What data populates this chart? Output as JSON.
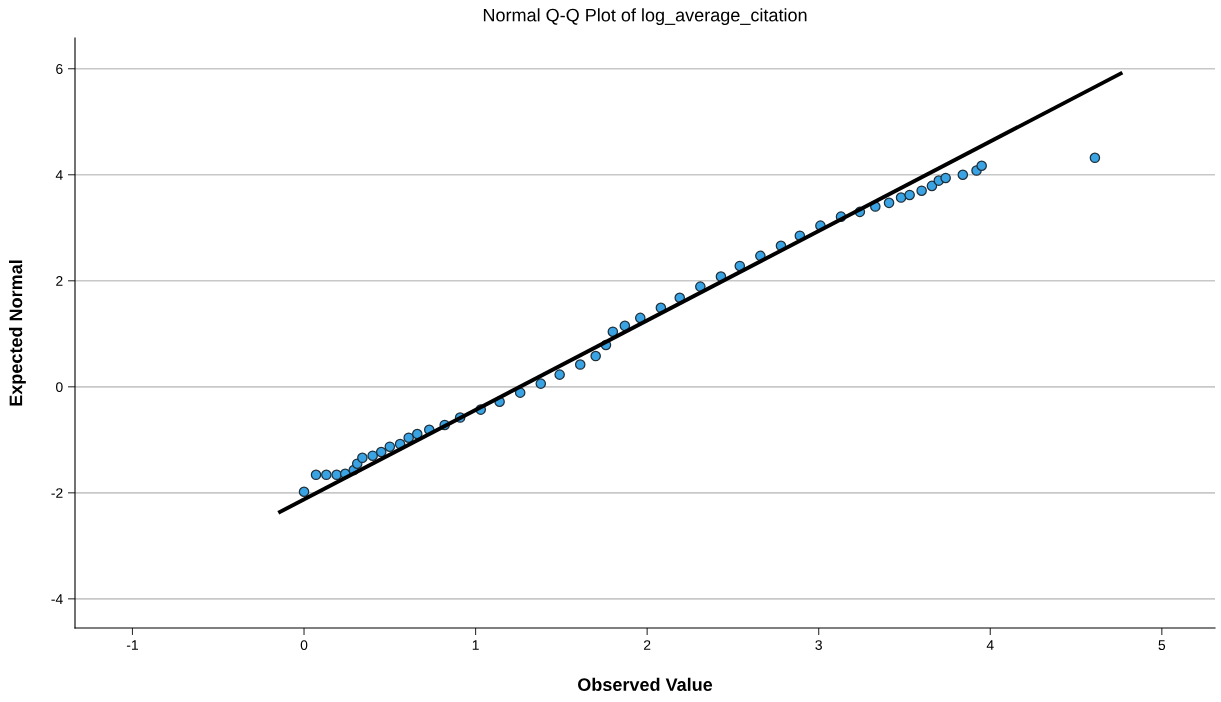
{
  "chart_data": {
    "type": "scatter",
    "title": "Normal Q-Q Plot of log_average_citation",
    "xlabel": "Observed Value",
    "ylabel": "Expected Normal",
    "xlim": [
      -1.335,
      5.31
    ],
    "ylim": [
      -4.55,
      6.58
    ],
    "xticks": [
      -1,
      0,
      1,
      2,
      3,
      4,
      5
    ],
    "yticks": [
      -4,
      -2,
      0,
      2,
      4,
      6
    ],
    "grid": "y",
    "series": [
      {
        "marker": "circle",
        "color": "#3aa3e3",
        "x": [
          0.0,
          0.07,
          0.13,
          0.19,
          0.24,
          0.29,
          0.31,
          0.34,
          0.4,
          0.45,
          0.5,
          0.56,
          0.61,
          0.66,
          0.73,
          0.82,
          0.91,
          1.03,
          1.14,
          1.26,
          1.38,
          1.49,
          1.61,
          1.7,
          1.76,
          1.8,
          1.87,
          1.96,
          2.08,
          2.19,
          2.31,
          2.43,
          2.54,
          2.66,
          2.78,
          2.89,
          3.01,
          3.13,
          3.24,
          3.33,
          3.41,
          3.48,
          3.53,
          3.6,
          3.66,
          3.7,
          3.74,
          3.84,
          3.92,
          3.95,
          4.61
        ],
        "values": [
          -1.98,
          -1.66,
          -1.66,
          -1.66,
          -1.64,
          -1.57,
          -1.45,
          -1.34,
          -1.3,
          -1.23,
          -1.13,
          -1.08,
          -0.96,
          -0.89,
          -0.81,
          -0.72,
          -0.58,
          -0.43,
          -0.28,
          -0.11,
          0.06,
          0.23,
          0.42,
          0.58,
          0.79,
          1.04,
          1.15,
          1.3,
          1.49,
          1.68,
          1.89,
          2.08,
          2.28,
          2.47,
          2.66,
          2.85,
          3.04,
          3.21,
          3.3,
          3.4,
          3.47,
          3.57,
          3.62,
          3.7,
          3.79,
          3.89,
          3.94,
          4.0,
          4.08,
          4.17,
          4.32
        ]
      },
      {
        "type": "line",
        "marker": "none",
        "color": "#000000",
        "x": [
          -0.14,
          4.76
        ],
        "values": [
          -2.36,
          5.91
        ]
      }
    ]
  }
}
